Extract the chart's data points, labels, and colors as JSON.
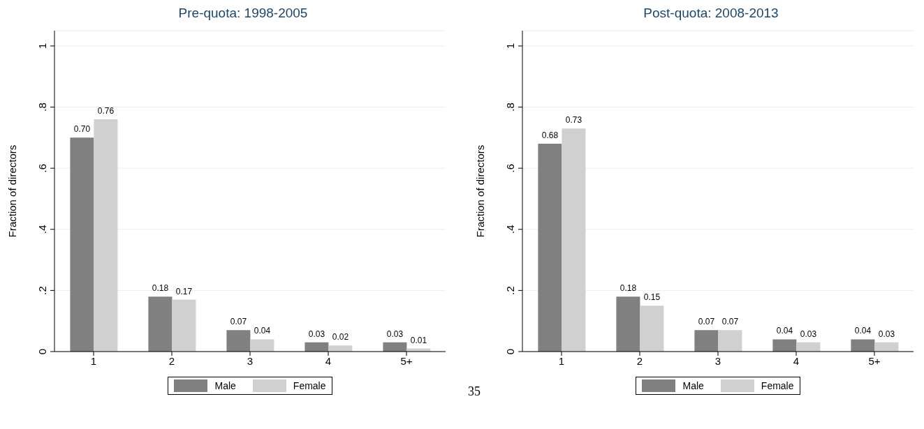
{
  "chart_data": [
    {
      "type": "bar",
      "title": "Pre-quota: 1998-2005",
      "ylabel": "Fraction of directors",
      "categories": [
        "1",
        "2",
        "3",
        "4",
        "5+"
      ],
      "series": [
        {
          "name": "Male",
          "color": "#808080",
          "values": [
            0.7,
            0.18,
            0.07,
            0.03,
            0.03
          ],
          "value_labels": [
            "0.70",
            "0.18",
            "0.07",
            "0.03",
            "0.03"
          ]
        },
        {
          "name": "Female",
          "color": "#d0d0d0",
          "values": [
            0.76,
            0.17,
            0.04,
            0.02,
            0.01
          ],
          "value_labels": [
            "0.76",
            "0.17",
            "0.04",
            "0.02",
            "0.01"
          ]
        }
      ],
      "ylim": [
        0,
        1.05
      ],
      "yticks": [
        {
          "value": 0,
          "label": "0"
        },
        {
          "value": 0.2,
          "label": ".2"
        },
        {
          "value": 0.4,
          "label": ".4"
        },
        {
          "value": 0.6,
          "label": ".6"
        },
        {
          "value": 0.8,
          "label": ".8"
        },
        {
          "value": 1,
          "label": "1"
        }
      ],
      "grid": "y",
      "legend": "bottom",
      "annotations": [
        "35"
      ]
    },
    {
      "type": "bar",
      "title": "Post-quota: 2008-2013",
      "ylabel": "Fraction of directors",
      "categories": [
        "1",
        "2",
        "3",
        "4",
        "5+"
      ],
      "series": [
        {
          "name": "Male",
          "color": "#808080",
          "values": [
            0.68,
            0.18,
            0.07,
            0.04,
            0.04
          ],
          "value_labels": [
            "0.68",
            "0.18",
            "0.07",
            "0.04",
            "0.04"
          ]
        },
        {
          "name": "Female",
          "color": "#d0d0d0",
          "values": [
            0.73,
            0.15,
            0.07,
            0.03,
            0.03
          ],
          "value_labels": [
            "0.73",
            "0.15",
            "0.07",
            "0.03",
            "0.03"
          ]
        }
      ],
      "ylim": [
        0,
        1.05
      ],
      "yticks": [
        {
          "value": 0,
          "label": "0"
        },
        {
          "value": 0.2,
          "label": ".2"
        },
        {
          "value": 0.4,
          "label": ".4"
        },
        {
          "value": 0.6,
          "label": ".6"
        },
        {
          "value": 0.8,
          "label": ".8"
        },
        {
          "value": 1,
          "label": "1"
        }
      ],
      "grid": "y",
      "legend": "bottom"
    }
  ]
}
